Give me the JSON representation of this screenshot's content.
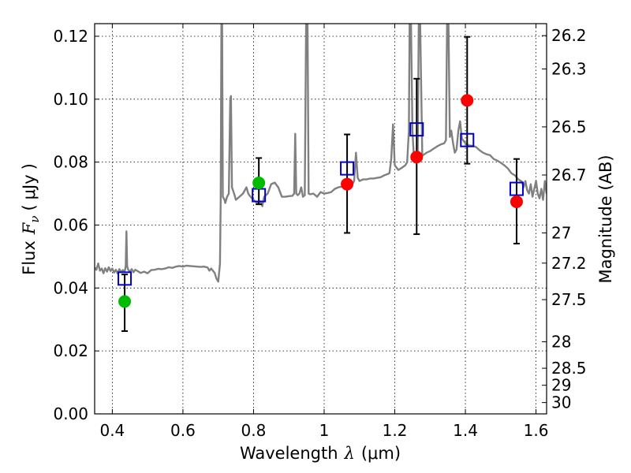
{
  "chart_data": {
    "type": "scatter",
    "xlabel": {
      "text": "Wavelength",
      "symbol": "λ",
      "unit": "(μm)"
    },
    "ylabel": {
      "text": "Flux",
      "symbol": "F",
      "subscript": "ν",
      "unit_open": "(",
      "unit": "μJy",
      "unit_close": ")"
    },
    "y2label": "Magnitude (AB)",
    "xlim": [
      0.35,
      1.63
    ],
    "ylim": [
      0.0,
      0.124
    ],
    "grid": true,
    "x_ticks": [
      0.4,
      0.6,
      0.8,
      1.0,
      1.2,
      1.4,
      1.6
    ],
    "x_tick_labels": [
      "0.4",
      "0.6",
      "0.8",
      "1",
      "1.2",
      "1.4",
      "1.6"
    ],
    "y_ticks": [
      0.0,
      0.02,
      0.04,
      0.06,
      0.08,
      0.1,
      0.12
    ],
    "y_tick_labels": [
      "0.00",
      "0.02",
      "0.04",
      "0.06",
      "0.08",
      "0.10",
      "0.12"
    ],
    "y2_ticks": [
      {
        "label": "26.2",
        "flux": 0.1202
      },
      {
        "label": "26.3",
        "flux": 0.1096
      },
      {
        "label": "26.5",
        "flux": 0.0912
      },
      {
        "label": "26.7",
        "flux": 0.0759
      },
      {
        "label": "27",
        "flux": 0.0575
      },
      {
        "label": "27.2",
        "flux": 0.0479
      },
      {
        "label": "27.5",
        "flux": 0.0363
      },
      {
        "label": "28",
        "flux": 0.0229
      },
      {
        "label": "28.5",
        "flux": 0.0145
      },
      {
        "label": "29",
        "flux": 0.0091
      },
      {
        "label": "30",
        "flux": 0.0036
      }
    ],
    "series": [
      {
        "kind": "model-spectrum",
        "color": "#808080",
        "points": [
          [
            0.35,
            0.0465
          ],
          [
            0.355,
            0.0458
          ],
          [
            0.36,
            0.0478
          ],
          [
            0.365,
            0.0455
          ],
          [
            0.37,
            0.0462
          ],
          [
            0.375,
            0.0447
          ],
          [
            0.38,
            0.0463
          ],
          [
            0.385,
            0.0452
          ],
          [
            0.39,
            0.0466
          ],
          [
            0.395,
            0.0454
          ],
          [
            0.4,
            0.0462
          ],
          [
            0.405,
            0.0449
          ],
          [
            0.41,
            0.0458
          ],
          [
            0.415,
            0.0446
          ],
          [
            0.42,
            0.046
          ],
          [
            0.425,
            0.0451
          ],
          [
            0.43,
            0.0457
          ],
          [
            0.435,
            0.0452
          ],
          [
            0.438,
            0.047
          ],
          [
            0.44,
            0.058
          ],
          [
            0.442,
            0.047
          ],
          [
            0.445,
            0.0458
          ],
          [
            0.45,
            0.0452
          ],
          [
            0.455,
            0.046
          ],
          [
            0.46,
            0.045
          ],
          [
            0.465,
            0.0458
          ],
          [
            0.47,
            0.0455
          ],
          [
            0.48,
            0.0448
          ],
          [
            0.49,
            0.0452
          ],
          [
            0.5,
            0.0447
          ],
          [
            0.51,
            0.0457
          ],
          [
            0.52,
            0.0458
          ],
          [
            0.53,
            0.0461
          ],
          [
            0.54,
            0.046
          ],
          [
            0.55,
            0.0462
          ],
          [
            0.56,
            0.0466
          ],
          [
            0.57,
            0.0464
          ],
          [
            0.58,
            0.0468
          ],
          [
            0.59,
            0.047
          ],
          [
            0.6,
            0.0468
          ],
          [
            0.61,
            0.0471
          ],
          [
            0.62,
            0.047
          ],
          [
            0.63,
            0.0469
          ],
          [
            0.64,
            0.0468
          ],
          [
            0.65,
            0.0467
          ],
          [
            0.66,
            0.0468
          ],
          [
            0.67,
            0.0465
          ],
          [
            0.675,
            0.0455
          ],
          [
            0.68,
            0.0462
          ],
          [
            0.69,
            0.0448
          ],
          [
            0.695,
            0.043
          ],
          [
            0.7,
            0.042
          ],
          [
            0.705,
            0.0478
          ],
          [
            0.707,
            0.068
          ],
          [
            0.709,
            0.124
          ],
          [
            0.711,
            0.124
          ],
          [
            0.713,
            0.069
          ],
          [
            0.718,
            0.068
          ],
          [
            0.72,
            0.067
          ],
          [
            0.725,
            0.069
          ],
          [
            0.73,
            0.07
          ],
          [
            0.734,
            0.1
          ],
          [
            0.736,
            0.101
          ],
          [
            0.739,
            0.072
          ],
          [
            0.745,
            0.07
          ],
          [
            0.75,
            0.068
          ],
          [
            0.76,
            0.069
          ],
          [
            0.77,
            0.07
          ],
          [
            0.78,
            0.072
          ],
          [
            0.785,
            0.07
          ],
          [
            0.79,
            0.0692
          ],
          [
            0.8,
            0.068
          ],
          [
            0.81,
            0.067
          ],
          [
            0.82,
            0.0675
          ],
          [
            0.825,
            0.066
          ],
          [
            0.83,
            0.069
          ],
          [
            0.84,
            0.07
          ],
          [
            0.85,
            0.073
          ],
          [
            0.86,
            0.0735
          ],
          [
            0.87,
            0.072
          ],
          [
            0.88,
            0.069
          ],
          [
            0.89,
            0.069
          ],
          [
            0.9,
            0.0692
          ],
          [
            0.91,
            0.0693
          ],
          [
            0.915,
            0.07
          ],
          [
            0.918,
            0.089
          ],
          [
            0.921,
            0.07
          ],
          [
            0.925,
            0.0695
          ],
          [
            0.93,
            0.07
          ],
          [
            0.935,
            0.072
          ],
          [
            0.94,
            0.069
          ],
          [
            0.945,
            0.0695
          ],
          [
            0.949,
            0.124
          ],
          [
            0.953,
            0.124
          ],
          [
            0.956,
            0.07
          ],
          [
            0.96,
            0.0698
          ],
          [
            0.97,
            0.07
          ],
          [
            0.98,
            0.069
          ],
          [
            0.99,
            0.0705
          ],
          [
            1.0,
            0.07
          ],
          [
            1.01,
            0.0702
          ],
          [
            1.02,
            0.0705
          ],
          [
            1.03,
            0.0715
          ],
          [
            1.04,
            0.072
          ],
          [
            1.05,
            0.0722
          ],
          [
            1.06,
            0.0718
          ],
          [
            1.07,
            0.0738
          ],
          [
            1.08,
            0.073
          ],
          [
            1.085,
            0.074
          ],
          [
            1.09,
            0.083
          ],
          [
            1.095,
            0.075
          ],
          [
            1.1,
            0.074
          ],
          [
            1.11,
            0.0745
          ],
          [
            1.12,
            0.0745
          ],
          [
            1.13,
            0.0748
          ],
          [
            1.14,
            0.0748
          ],
          [
            1.15,
            0.075
          ],
          [
            1.16,
            0.0752
          ],
          [
            1.17,
            0.0758
          ],
          [
            1.18,
            0.0762
          ],
          [
            1.185,
            0.0765
          ],
          [
            1.19,
            0.081
          ],
          [
            1.195,
            0.092
          ],
          [
            1.2,
            0.079
          ],
          [
            1.21,
            0.0775
          ],
          [
            1.22,
            0.0782
          ],
          [
            1.23,
            0.079
          ],
          [
            1.235,
            0.08
          ],
          [
            1.24,
            0.09
          ],
          [
            1.242,
            0.124
          ],
          [
            1.246,
            0.124
          ],
          [
            1.25,
            0.09
          ],
          [
            1.255,
            0.08
          ],
          [
            1.26,
            0.081
          ],
          [
            1.265,
            0.082
          ],
          [
            1.268,
            0.124
          ],
          [
            1.272,
            0.124
          ],
          [
            1.278,
            0.082
          ],
          [
            1.285,
            0.0826
          ],
          [
            1.29,
            0.083
          ],
          [
            1.3,
            0.0835
          ],
          [
            1.31,
            0.0843
          ],
          [
            1.32,
            0.085
          ],
          [
            1.33,
            0.0856
          ],
          [
            1.34,
            0.086
          ],
          [
            1.345,
            0.087
          ],
          [
            1.348,
            0.124
          ],
          [
            1.352,
            0.124
          ],
          [
            1.356,
            0.088
          ],
          [
            1.36,
            0.09
          ],
          [
            1.365,
            0.086
          ],
          [
            1.37,
            0.083
          ],
          [
            1.375,
            0.084
          ],
          [
            1.38,
            0.09
          ],
          [
            1.385,
            0.093
          ],
          [
            1.39,
            0.0875
          ],
          [
            1.4,
            0.086
          ],
          [
            1.41,
            0.0853
          ],
          [
            1.42,
            0.0852
          ],
          [
            1.43,
            0.0848
          ],
          [
            1.44,
            0.0838
          ],
          [
            1.45,
            0.083
          ],
          [
            1.46,
            0.0825
          ],
          [
            1.47,
            0.0822
          ],
          [
            1.48,
            0.081
          ],
          [
            1.49,
            0.0805
          ],
          [
            1.5,
            0.0798
          ],
          [
            1.51,
            0.079
          ],
          [
            1.52,
            0.078
          ],
          [
            1.53,
            0.0765
          ],
          [
            1.54,
            0.0758
          ],
          [
            1.55,
            0.0745
          ],
          [
            1.56,
            0.0738
          ],
          [
            1.565,
            0.072
          ],
          [
            1.57,
            0.074
          ],
          [
            1.575,
            0.071
          ],
          [
            1.58,
            0.07
          ],
          [
            1.585,
            0.073
          ],
          [
            1.59,
            0.069
          ],
          [
            1.6,
            0.074
          ],
          [
            1.605,
            0.07
          ],
          [
            1.61,
            0.0685
          ],
          [
            1.615,
            0.0715
          ],
          [
            1.62,
            0.068
          ],
          [
            1.625,
            0.074
          ],
          [
            1.63,
            0.07
          ]
        ]
      },
      {
        "kind": "model-photometry",
        "marker": "open-square",
        "color": "#0000cc",
        "points": [
          {
            "x": 0.435,
            "y": 0.043
          },
          {
            "x": 0.815,
            "y": 0.0695
          },
          {
            "x": 1.065,
            "y": 0.078
          },
          {
            "x": 1.262,
            "y": 0.0904
          },
          {
            "x": 1.405,
            "y": 0.087
          },
          {
            "x": 1.545,
            "y": 0.0715
          }
        ]
      },
      {
        "kind": "observed-photometry",
        "marker": "filled-circle",
        "points": [
          {
            "x": 0.435,
            "y": 0.0357,
            "yerr_low": 0.0263,
            "yerr_high": 0.0443,
            "color": "#00bb00"
          },
          {
            "x": 0.815,
            "y": 0.0734,
            "yerr_low": 0.0666,
            "yerr_high": 0.0813,
            "color": "#00bb00"
          },
          {
            "x": 1.065,
            "y": 0.073,
            "yerr_low": 0.0575,
            "yerr_high": 0.0888,
            "color": "#ff0000"
          },
          {
            "x": 1.262,
            "y": 0.0816,
            "yerr_low": 0.0571,
            "yerr_high": 0.1065,
            "color": "#ff0000"
          },
          {
            "x": 1.405,
            "y": 0.0996,
            "yerr_low": 0.0795,
            "yerr_high": 0.1198,
            "color": "#ff0000"
          },
          {
            "x": 1.545,
            "y": 0.0674,
            "yerr_low": 0.0541,
            "yerr_high": 0.081,
            "color": "#ff0000"
          }
        ]
      }
    ]
  }
}
